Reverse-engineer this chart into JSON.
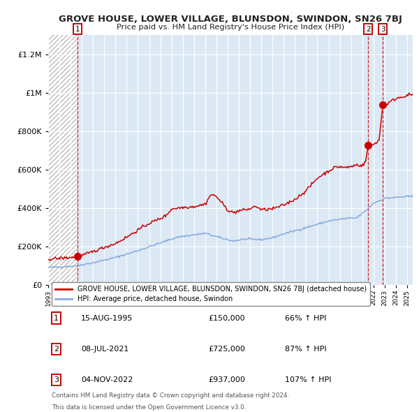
{
  "title": "GROVE HOUSE, LOWER VILLAGE, BLUNSDON, SWINDON, SN26 7BJ",
  "subtitle": "Price paid vs. HM Land Registry's House Price Index (HPI)",
  "legend_line1": "GROVE HOUSE, LOWER VILLAGE, BLUNSDON, SWINDON, SN26 7BJ (detached house)",
  "legend_line2": "HPI: Average price, detached house, Swindon",
  "transactions": [
    {
      "num": 1,
      "date": "15-AUG-1995",
      "year": 1995.62,
      "price": 150000,
      "pct": "66% ↑ HPI"
    },
    {
      "num": 2,
      "date": "08-JUL-2021",
      "year": 2021.52,
      "price": 725000,
      "pct": "87% ↑ HPI"
    },
    {
      "num": 3,
      "date": "04-NOV-2022",
      "year": 2022.84,
      "price": 937000,
      "pct": "107% ↑ HPI"
    }
  ],
  "footer1": "Contains HM Land Registry data © Crown copyright and database right 2024.",
  "footer2": "This data is licensed under the Open Government Licence v3.0.",
  "plot_bg": "#dce9f5",
  "red_line_color": "#cc0000",
  "blue_line_color": "#88aadd",
  "dashed_line_color": "#cc0000",
  "ylim": [
    0,
    1300000
  ],
  "xlim_start": 1993.0,
  "xlim_end": 2025.5,
  "hpi_anchors": [
    [
      1993.0,
      90000
    ],
    [
      1995.0,
      97000
    ],
    [
      1995.6,
      100000
    ],
    [
      1997.0,
      115000
    ],
    [
      1999.0,
      142000
    ],
    [
      2001.0,
      178000
    ],
    [
      2003.0,
      218000
    ],
    [
      2004.5,
      248000
    ],
    [
      2007.0,
      268000
    ],
    [
      2008.5,
      242000
    ],
    [
      2009.5,
      228000
    ],
    [
      2010.5,
      238000
    ],
    [
      2012.0,
      235000
    ],
    [
      2013.0,
      245000
    ],
    [
      2014.0,
      265000
    ],
    [
      2016.0,
      298000
    ],
    [
      2018.0,
      332000
    ],
    [
      2019.5,
      345000
    ],
    [
      2020.5,
      348000
    ],
    [
      2021.5,
      395000
    ],
    [
      2022.0,
      425000
    ],
    [
      2023.0,
      450000
    ],
    [
      2024.0,
      455000
    ],
    [
      2025.3,
      460000
    ]
  ],
  "red_anchors": [
    [
      1993.0,
      134000
    ],
    [
      1995.0,
      142000
    ],
    [
      1995.62,
      150000
    ],
    [
      1996.0,
      152000
    ],
    [
      1997.0,
      173000
    ],
    [
      1998.0,
      195000
    ],
    [
      1999.0,
      215000
    ],
    [
      2000.0,
      248000
    ],
    [
      2001.0,
      285000
    ],
    [
      2002.0,
      320000
    ],
    [
      2003.0,
      345000
    ],
    [
      2003.5,
      360000
    ],
    [
      2004.0,
      395000
    ],
    [
      2005.0,
      403000
    ],
    [
      2006.0,
      407000
    ],
    [
      2007.0,
      420000
    ],
    [
      2007.5,
      470000
    ],
    [
      2008.0,
      460000
    ],
    [
      2008.5,
      425000
    ],
    [
      2009.0,
      390000
    ],
    [
      2009.5,
      375000
    ],
    [
      2010.0,
      385000
    ],
    [
      2011.0,
      395000
    ],
    [
      2011.5,
      410000
    ],
    [
      2012.0,
      390000
    ],
    [
      2013.0,
      395000
    ],
    [
      2014.0,
      415000
    ],
    [
      2015.0,
      445000
    ],
    [
      2016.0,
      490000
    ],
    [
      2017.0,
      555000
    ],
    [
      2017.5,
      575000
    ],
    [
      2018.0,
      592000
    ],
    [
      2018.5,
      610000
    ],
    [
      2019.0,
      615000
    ],
    [
      2019.5,
      610000
    ],
    [
      2020.0,
      615000
    ],
    [
      2020.5,
      625000
    ],
    [
      2021.0,
      620000
    ],
    [
      2021.3,
      640000
    ],
    [
      2021.52,
      725000
    ],
    [
      2021.7,
      728000
    ],
    [
      2022.0,
      730000
    ],
    [
      2022.3,
      745000
    ],
    [
      2022.5,
      752000
    ],
    [
      2022.84,
      937000
    ],
    [
      2023.0,
      928000
    ],
    [
      2023.3,
      945000
    ],
    [
      2023.7,
      960000
    ],
    [
      2024.0,
      970000
    ],
    [
      2024.5,
      978000
    ],
    [
      2025.3,
      990000
    ]
  ]
}
